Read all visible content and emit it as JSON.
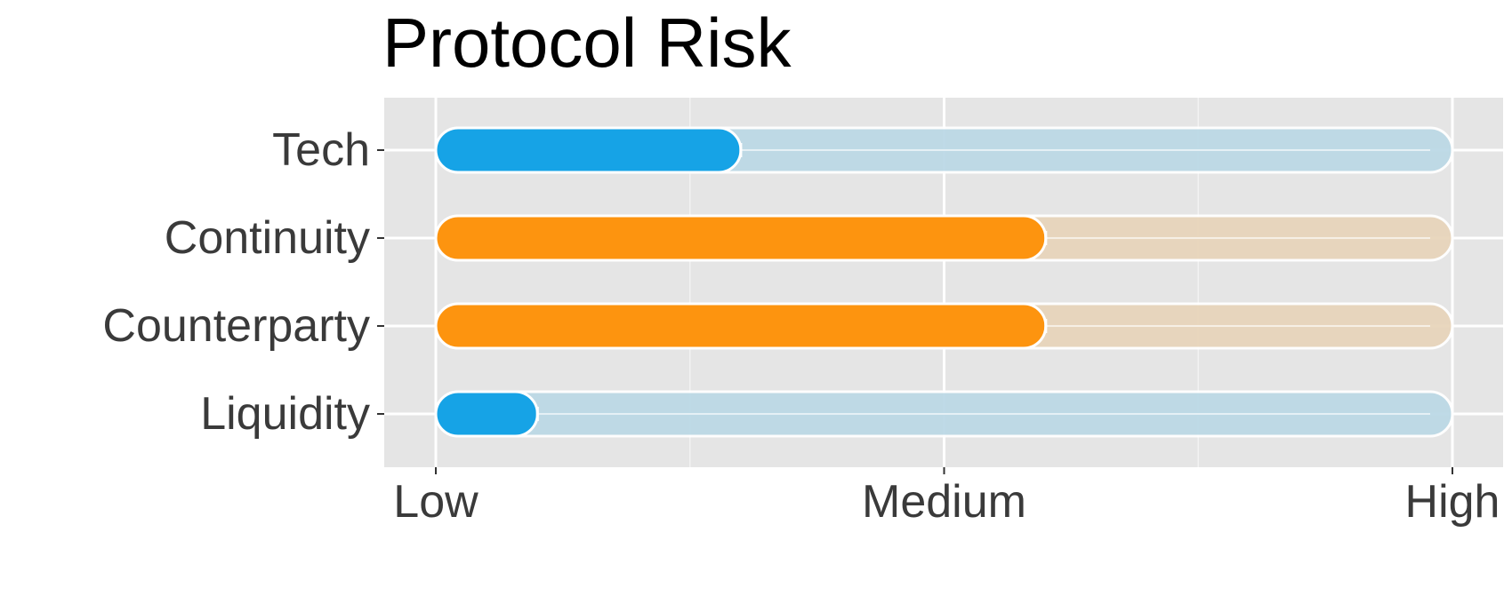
{
  "chart_data": {
    "type": "bar",
    "title": "Protocol Risk",
    "xlabel": "",
    "ylabel": "",
    "categories": [
      "Tech",
      "Continuity",
      "Counterparty",
      "Liquidity"
    ],
    "values": [
      0.3,
      0.6,
      0.6,
      0.1
    ],
    "x_range": [
      0,
      1
    ],
    "x_ticks": [
      {
        "value": 0,
        "label": "Low"
      },
      {
        "value": 0.5,
        "label": "Medium"
      },
      {
        "value": 1,
        "label": "High"
      }
    ],
    "bar_colors": [
      "#16a3e6",
      "#fd940f",
      "#fd940f",
      "#16a3e6"
    ],
    "track_colors": [
      "#bcd9e6",
      "#e8d5bb",
      "#e8d5bb",
      "#bcd9e6"
    ],
    "panel_color": "#e5e5e5",
    "grid": true,
    "legend": "none"
  }
}
